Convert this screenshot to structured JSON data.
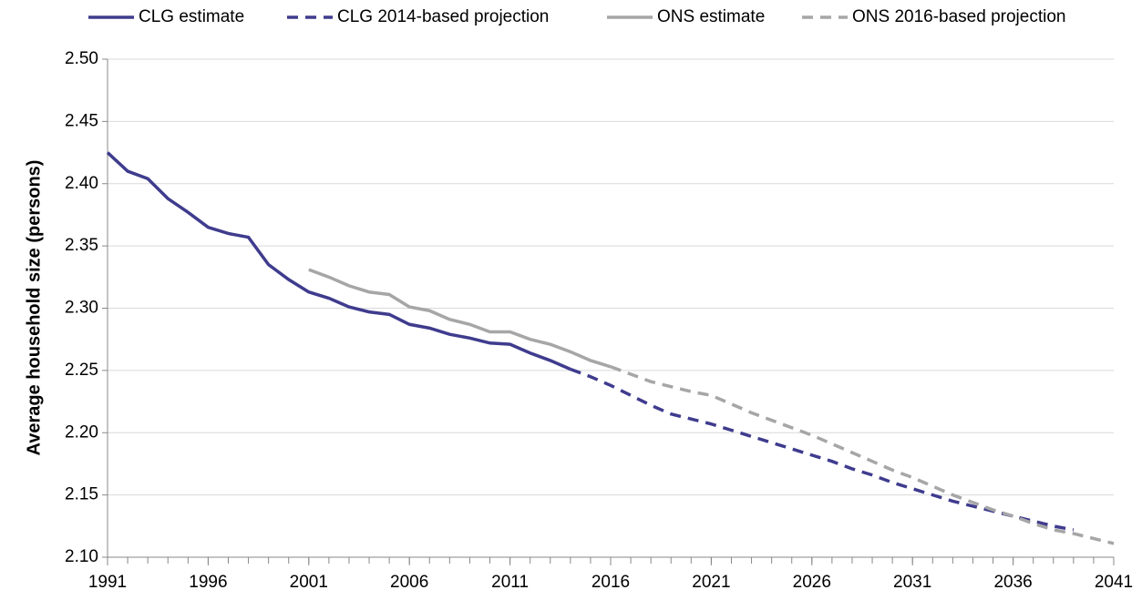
{
  "chart_data": {
    "type": "line",
    "y_label": "Average household size (persons)",
    "xlim": [
      1991,
      2041
    ],
    "xticks": [
      1991,
      1996,
      2001,
      2006,
      2011,
      2016,
      2021,
      2026,
      2031,
      2036,
      2041
    ],
    "ylim": [
      2.1,
      2.5
    ],
    "yticks": [
      {
        "value": 2.1,
        "label": "2.10"
      },
      2.15,
      {
        "value": 2.2,
        "label": "2.20"
      },
      2.25,
      {
        "value": 2.3,
        "label": "2.30"
      },
      2.35,
      {
        "value": 2.4,
        "label": "2.40"
      },
      2.45,
      {
        "value": 2.5,
        "label": "2.50"
      }
    ],
    "grid": true,
    "legend": "top",
    "series": [
      {
        "name": "CLG estimate",
        "color": "#3f3c8e",
        "dashed": false,
        "x": [
          1991,
          1992,
          1993,
          1994,
          1995,
          1996,
          1997,
          1998,
          1999,
          2000,
          2001,
          2002,
          2003,
          2004,
          2005,
          2006,
          2007,
          2008,
          2009,
          2010,
          2011,
          2012,
          2013,
          2014
        ],
        "values": [
          2.425,
          2.41,
          2.404,
          2.388,
          2.377,
          2.365,
          2.36,
          2.357,
          2.335,
          2.323,
          2.313,
          2.308,
          2.301,
          2.297,
          2.295,
          2.287,
          2.284,
          2.279,
          2.276,
          2.272,
          2.271,
          2.264,
          2.258,
          2.251
        ]
      },
      {
        "name": "CLG 2014-based projection",
        "color": "#3f3c8e",
        "dashed": true,
        "x": [
          2014,
          2015,
          2016,
          2017,
          2018,
          2019,
          2020,
          2021,
          2022,
          2023,
          2024,
          2025,
          2026,
          2027,
          2028,
          2029,
          2030,
          2031,
          2032,
          2033,
          2034,
          2035,
          2036,
          2037,
          2038,
          2039
        ],
        "values": [
          2.251,
          2.245,
          2.238,
          2.23,
          2.222,
          2.215,
          2.211,
          2.207,
          2.202,
          2.197,
          2.192,
          2.187,
          2.182,
          2.177,
          2.171,
          2.166,
          2.16,
          2.155,
          2.15,
          2.145,
          2.141,
          2.137,
          2.133,
          2.129,
          2.125,
          2.122
        ]
      },
      {
        "name": "ONS estimate",
        "color": "#a6a6a6",
        "dashed": false,
        "x": [
          2001,
          2002,
          2003,
          2004,
          2005,
          2006,
          2007,
          2008,
          2009,
          2010,
          2011,
          2012,
          2013,
          2014,
          2015,
          2016
        ],
        "values": [
          2.331,
          2.325,
          2.318,
          2.313,
          2.311,
          2.301,
          2.298,
          2.291,
          2.287,
          2.281,
          2.281,
          2.275,
          2.271,
          2.265,
          2.258,
          2.253
        ]
      },
      {
        "name": "ONS 2016-based projection",
        "color": "#a6a6a6",
        "dashed": true,
        "x": [
          2016,
          2017,
          2018,
          2019,
          2020,
          2021,
          2022,
          2023,
          2024,
          2025,
          2026,
          2027,
          2028,
          2029,
          2030,
          2031,
          2032,
          2033,
          2034,
          2035,
          2036,
          2037,
          2038,
          2039,
          2040,
          2041
        ],
        "values": [
          2.253,
          2.247,
          2.241,
          2.237,
          2.233,
          2.23,
          2.223,
          2.216,
          2.21,
          2.204,
          2.198,
          2.191,
          2.184,
          2.177,
          2.17,
          2.164,
          2.157,
          2.15,
          2.144,
          2.138,
          2.133,
          2.127,
          2.122,
          2.119,
          2.115,
          2.111
        ]
      }
    ]
  }
}
